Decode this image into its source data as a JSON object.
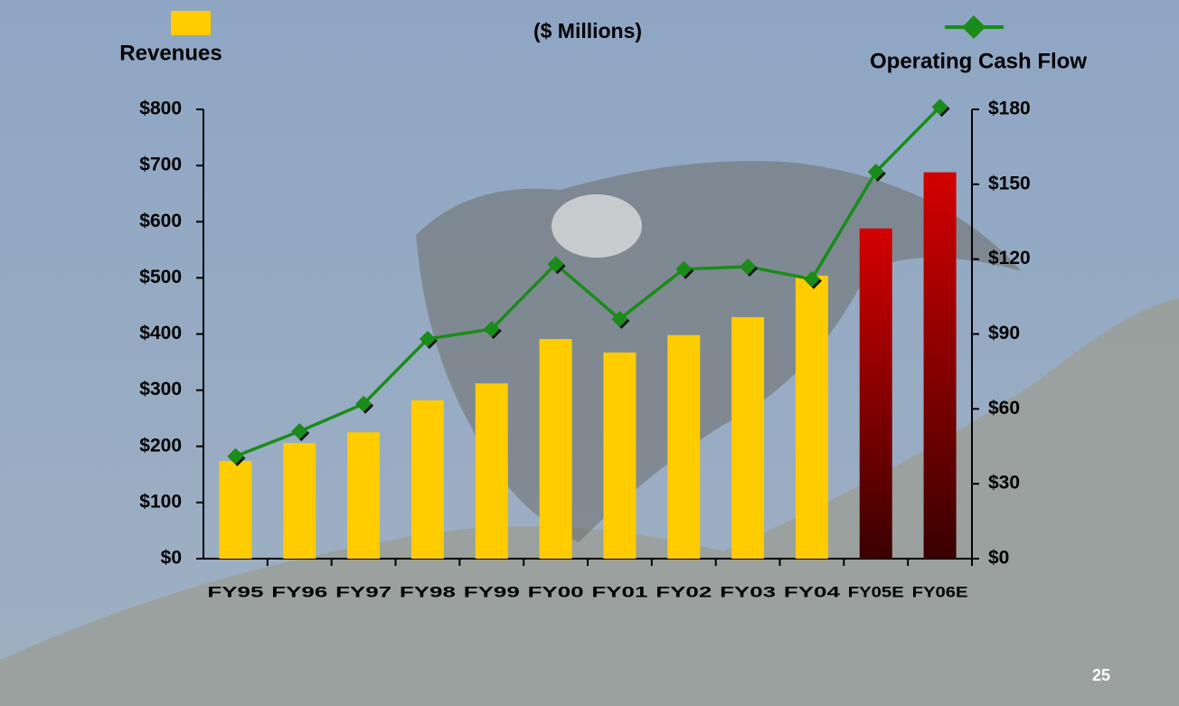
{
  "chart_data": {
    "type": "bar_line",
    "title": "($ Millions)",
    "page_number": "25",
    "categories": [
      "FY95",
      "FY96",
      "FY97",
      "FY98",
      "FY99",
      "FY00",
      "FY01",
      "FY02",
      "FY03",
      "FY04",
      "FY05E",
      "FY06E"
    ],
    "series": [
      {
        "name": "Revenues",
        "type": "bar",
        "color": "#ffcc00",
        "colors": [
          "#ffcc00",
          "#ffcc00",
          "#ffcc00",
          "#ffcc00",
          "#ffcc00",
          "#ffcc00",
          "#ffcc00",
          "#ffcc00",
          "#ffcc00",
          "#ffcc00",
          "#cc0000",
          "#cc0000"
        ],
        "values": [
          174,
          206,
          225,
          282,
          312,
          391,
          367,
          398,
          430,
          504,
          588,
          688
        ]
      },
      {
        "name": "Operating Cash Flow",
        "type": "line",
        "axis": "y2",
        "color": "#1a8c1a",
        "values": [
          41,
          51,
          62,
          88,
          92,
          118,
          96,
          116,
          117,
          112,
          155,
          181
        ]
      }
    ],
    "ylim": [
      0,
      800
    ],
    "yticks": [
      {
        "value": 0,
        "label": "$0"
      },
      {
        "value": 100,
        "label": "$100"
      },
      {
        "value": 200,
        "label": "$200"
      },
      {
        "value": 300,
        "label": "$300"
      },
      {
        "value": 400,
        "label": "$400"
      },
      {
        "value": 500,
        "label": "$500"
      },
      {
        "value": 600,
        "label": "$600"
      },
      {
        "value": 700,
        "label": "$700"
      },
      {
        "value": 800,
        "label": "$800"
      }
    ],
    "y2lim": [
      0,
      180
    ],
    "y2ticks": [
      {
        "value": 0,
        "label": "$0"
      },
      {
        "value": 30,
        "label": "$30"
      },
      {
        "value": 60,
        "label": "$60"
      },
      {
        "value": 90,
        "label": "$90"
      },
      {
        "value": 120,
        "label": "$120"
      },
      {
        "value": 150,
        "label": "$150"
      },
      {
        "value": 180,
        "label": "$180"
      }
    ]
  }
}
